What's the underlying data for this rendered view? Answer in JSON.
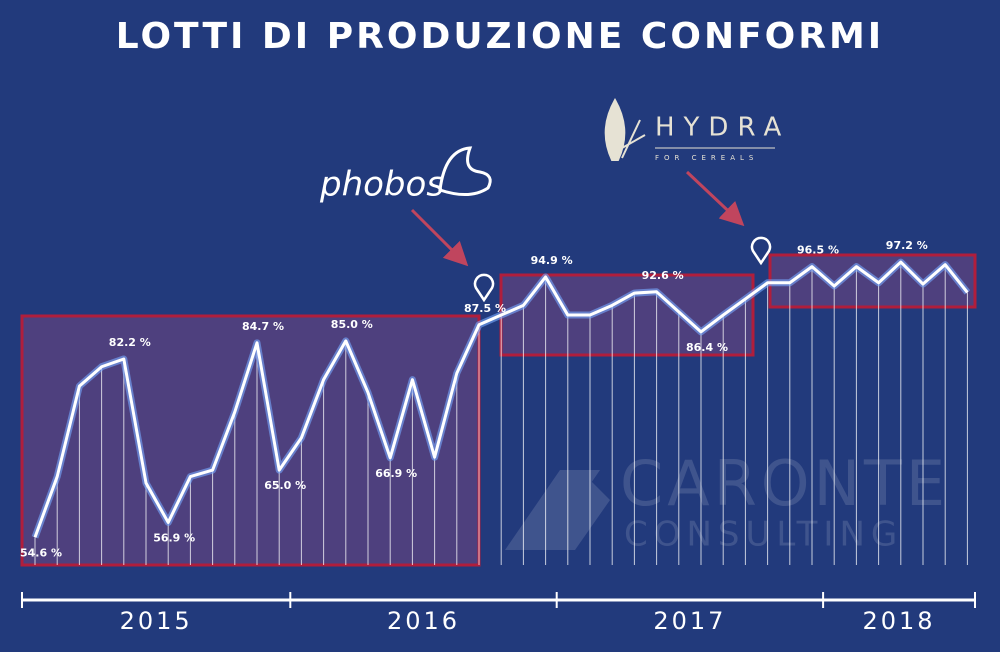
{
  "chart_data": {
    "type": "line",
    "title": "LOTTI DI PRODUZIONE CONFORMI",
    "annotations": [
      "phobos",
      "HYDRA",
      "FOR CEREALS",
      "CARONTE",
      "CONSULTING"
    ],
    "categories": [
      "2015",
      null,
      null,
      null,
      null,
      null,
      null,
      null,
      null,
      null,
      null,
      null,
      "2016",
      null,
      null,
      null,
      null,
      null,
      null,
      null,
      null,
      null,
      null,
      null,
      "2017",
      null,
      null,
      null,
      null,
      null,
      null,
      null,
      null,
      null,
      null,
      null,
      "2018",
      null,
      null,
      null,
      null,
      null,
      null
    ],
    "values": [
      54.6,
      64,
      78,
      81,
      82.2,
      63,
      56.9,
      64,
      65,
      74,
      84.7,
      65.0,
      70,
      79,
      85.0,
      77,
      66.9,
      79,
      67,
      80,
      87.5,
      89,
      90.5,
      94.9,
      89,
      89,
      90.5,
      92.4,
      92.6,
      89.5,
      86.4,
      89,
      91.5,
      94,
      94,
      96.5,
      93.5,
      96.5,
      94,
      97.2,
      93.8,
      96.8,
      92.5
    ],
    "value_labels": [
      "54.6 %",
      null,
      null,
      null,
      "82.2 %",
      null,
      "56.9 %",
      null,
      null,
      null,
      "84.7 %",
      "65.0 %",
      null,
      null,
      "85.0 %",
      null,
      "66.9 %",
      null,
      null,
      null,
      "87.5 %",
      null,
      null,
      "94.9 %",
      null,
      null,
      null,
      null,
      "92.6 %",
      null,
      "86.4 %",
      null,
      null,
      null,
      null,
      "96.5 %",
      null,
      null,
      null,
      "97.2 %",
      null,
      null,
      null
    ],
    "color": "#ffffff",
    "ylim": [
      50,
      100
    ]
  }
}
